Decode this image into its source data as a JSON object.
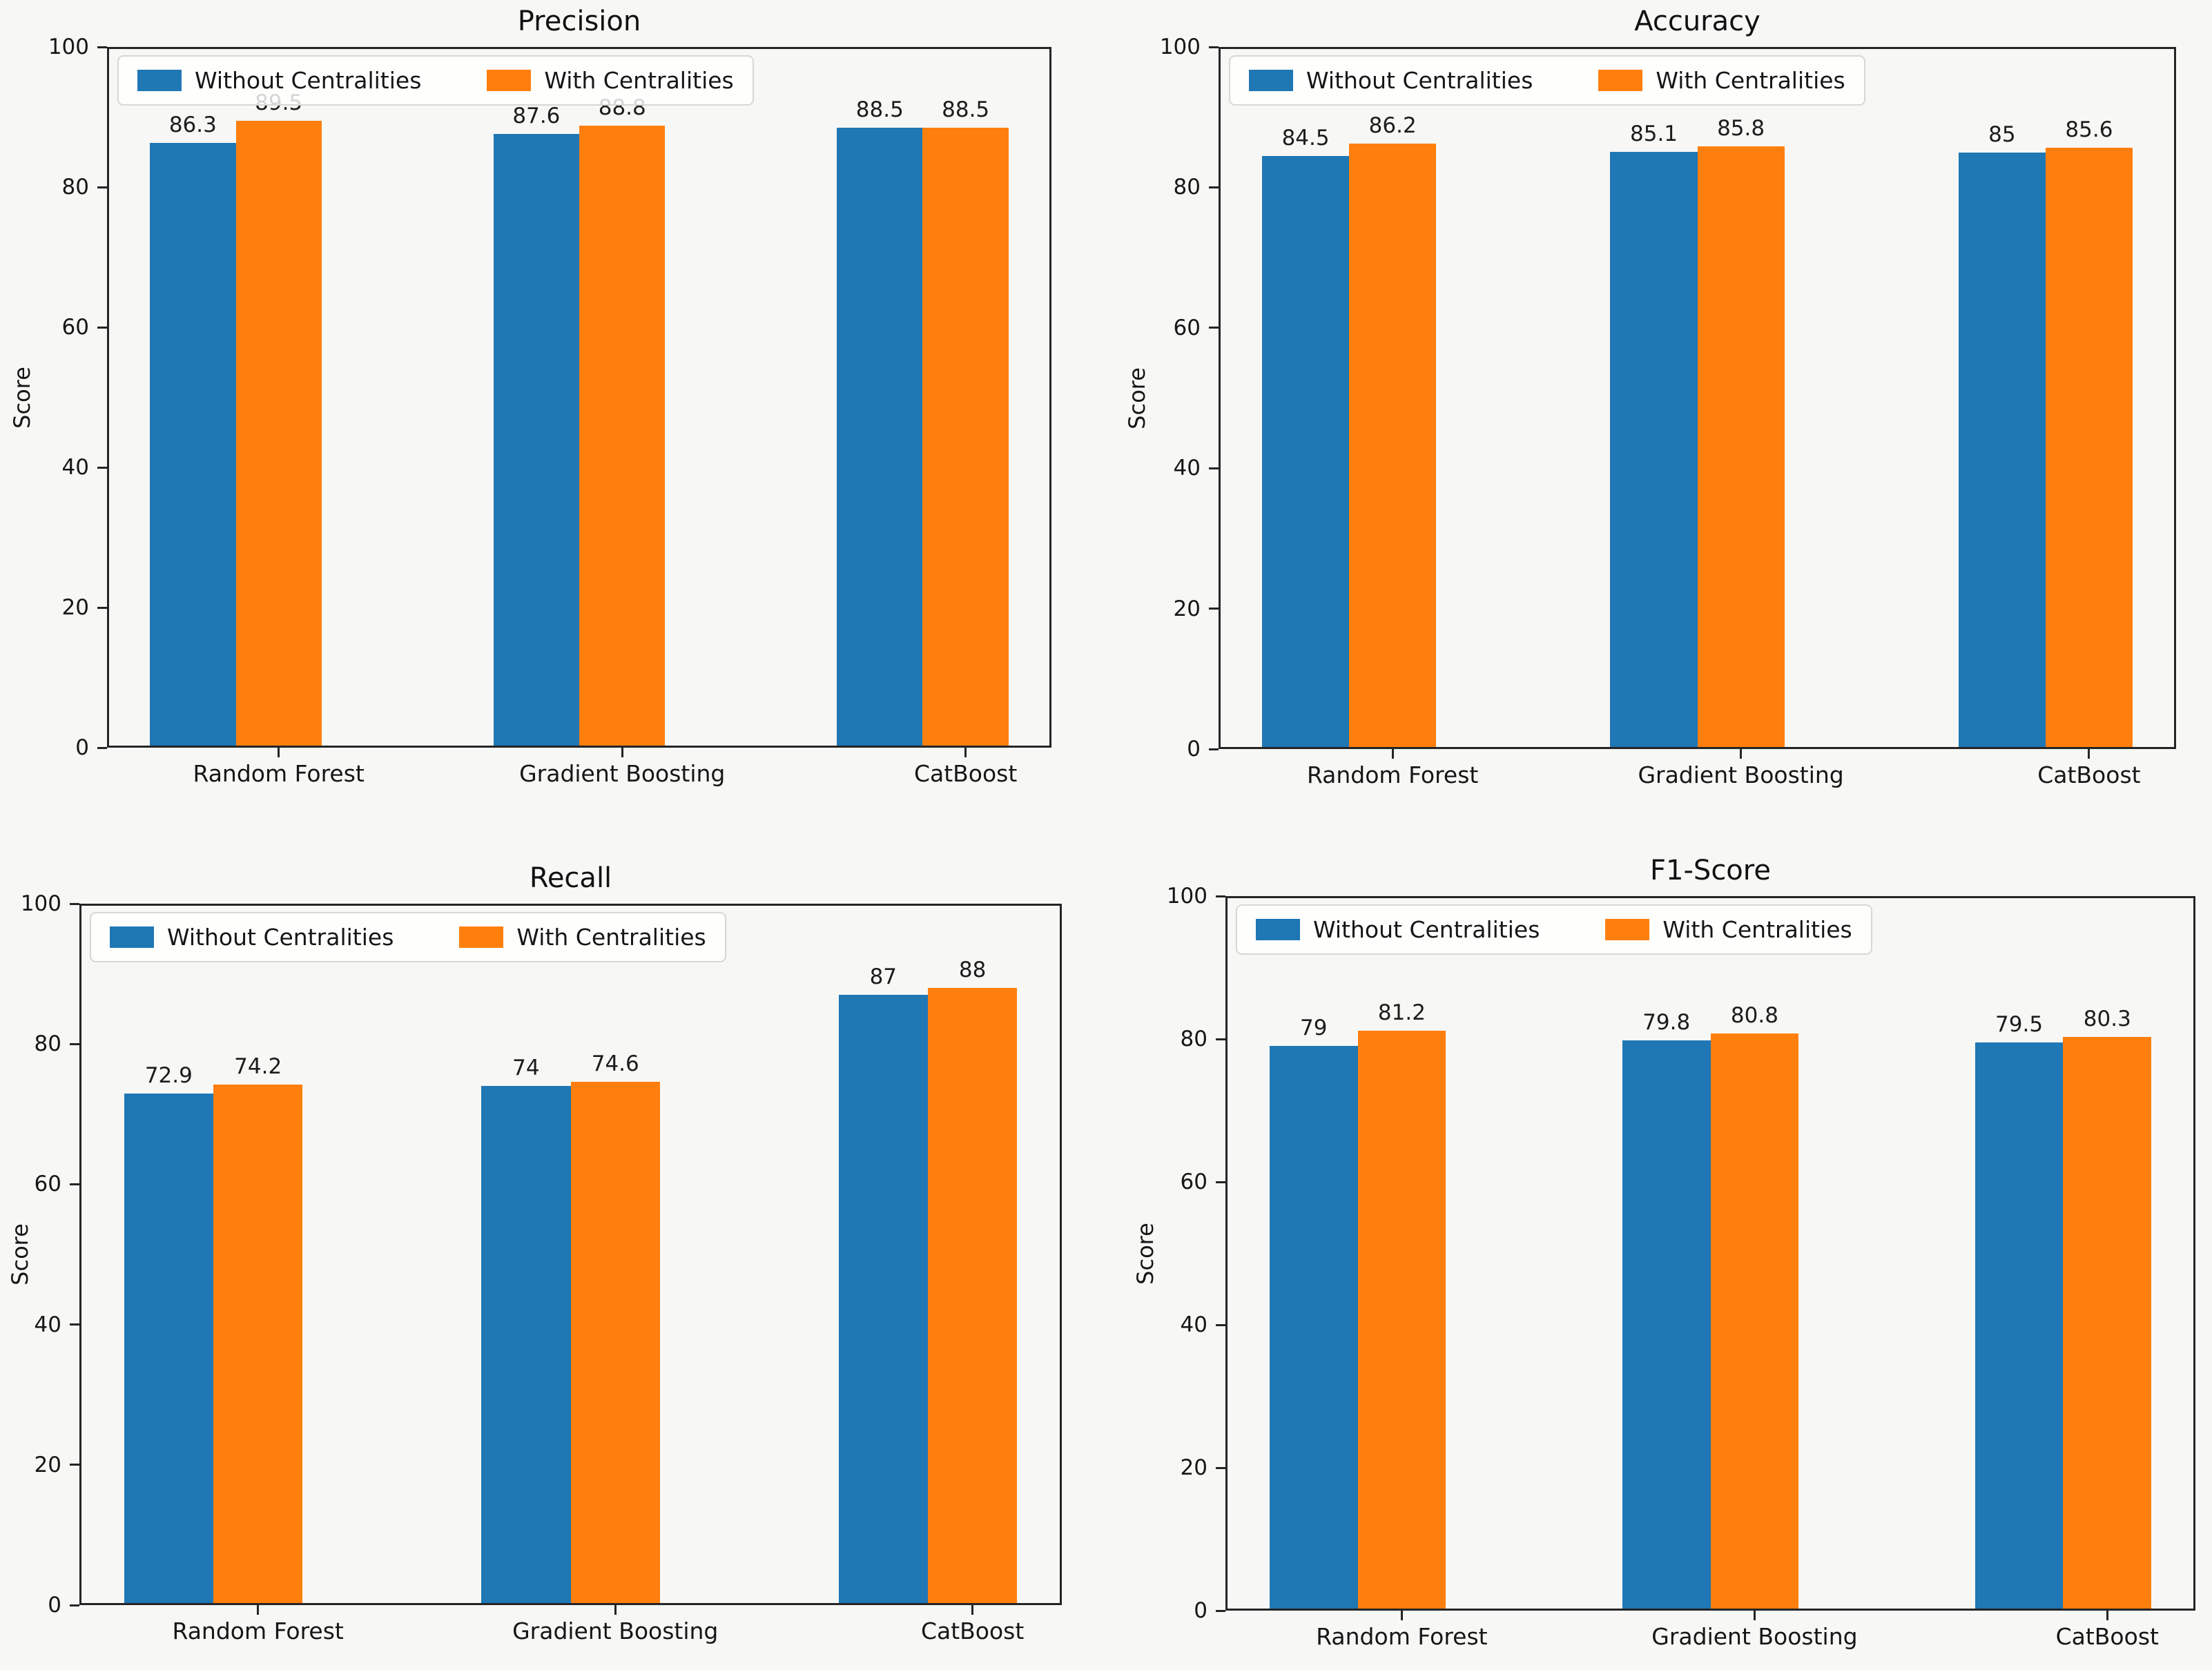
{
  "figure": {
    "background_color": "#f7f7f5",
    "axis_color": "#252525",
    "series_colors": {
      "without_centralities": "#1f77b4",
      "with_centralities": "#ff7f0e"
    }
  },
  "chart_data": [
    {
      "type": "bar",
      "title": "Precision",
      "xlabel": "",
      "ylabel": "Score",
      "ylim": [
        0,
        100
      ],
      "yticks": [
        0,
        20,
        40,
        60,
        80,
        100
      ],
      "grid": false,
      "legend_position": "upper left",
      "categories": [
        "Random Forest",
        "Gradient Boosting",
        "CatBoost"
      ],
      "series": [
        {
          "name": "Without Centralities",
          "color": "#1f77b4",
          "values": [
            86.3,
            87.6,
            88.5
          ]
        },
        {
          "name": "With Centralities",
          "color": "#ff7f0e",
          "values": [
            89.5,
            88.8,
            88.5
          ]
        }
      ],
      "bar_labels": [
        [
          "86.3",
          "87.6",
          "88.5"
        ],
        [
          "89.5",
          "88.8",
          "88.5"
        ]
      ]
    },
    {
      "type": "bar",
      "title": "Accuracy",
      "xlabel": "",
      "ylabel": "Score",
      "ylim": [
        0,
        100
      ],
      "yticks": [
        0,
        20,
        40,
        60,
        80,
        100
      ],
      "grid": false,
      "legend_position": "upper left",
      "categories": [
        "Random Forest",
        "Gradient Boosting",
        "CatBoost"
      ],
      "series": [
        {
          "name": "Without Centralities",
          "color": "#1f77b4",
          "values": [
            84.5,
            85.1,
            85
          ]
        },
        {
          "name": "With Centralities",
          "color": "#ff7f0e",
          "values": [
            86.2,
            85.8,
            85.6
          ]
        }
      ],
      "bar_labels": [
        [
          "84.5",
          "85.1",
          "85"
        ],
        [
          "86.2",
          "85.8",
          "85.6"
        ]
      ]
    },
    {
      "type": "bar",
      "title": "Recall",
      "xlabel": "",
      "ylabel": "Score",
      "ylim": [
        0,
        100
      ],
      "yticks": [
        0,
        20,
        40,
        60,
        80,
        100
      ],
      "grid": false,
      "legend_position": "upper left",
      "categories": [
        "Random Forest",
        "Gradient Boosting",
        "CatBoost"
      ],
      "series": [
        {
          "name": "Without Centralities",
          "color": "#1f77b4",
          "values": [
            72.9,
            74,
            87
          ]
        },
        {
          "name": "With Centralities",
          "color": "#ff7f0e",
          "values": [
            74.2,
            74.6,
            88
          ]
        }
      ],
      "bar_labels": [
        [
          "72.9",
          "74",
          "87"
        ],
        [
          "74.2",
          "74.6",
          "88"
        ]
      ]
    },
    {
      "type": "bar",
      "title": "F1-Score",
      "xlabel": "",
      "ylabel": "Score",
      "ylim": [
        0,
        100
      ],
      "yticks": [
        0,
        20,
        40,
        60,
        80,
        100
      ],
      "grid": false,
      "legend_position": "upper left",
      "categories": [
        "Random Forest",
        "Gradient Boosting",
        "CatBoost"
      ],
      "series": [
        {
          "name": "Without Centralities",
          "color": "#1f77b4",
          "values": [
            79,
            79.8,
            79.5
          ]
        },
        {
          "name": "With Centralities",
          "color": "#ff7f0e",
          "values": [
            81.2,
            80.8,
            80.3
          ]
        }
      ],
      "bar_labels": [
        [
          "79",
          "79.8",
          "79.5"
        ],
        [
          "81.2",
          "80.8",
          "80.3"
        ]
      ]
    }
  ]
}
